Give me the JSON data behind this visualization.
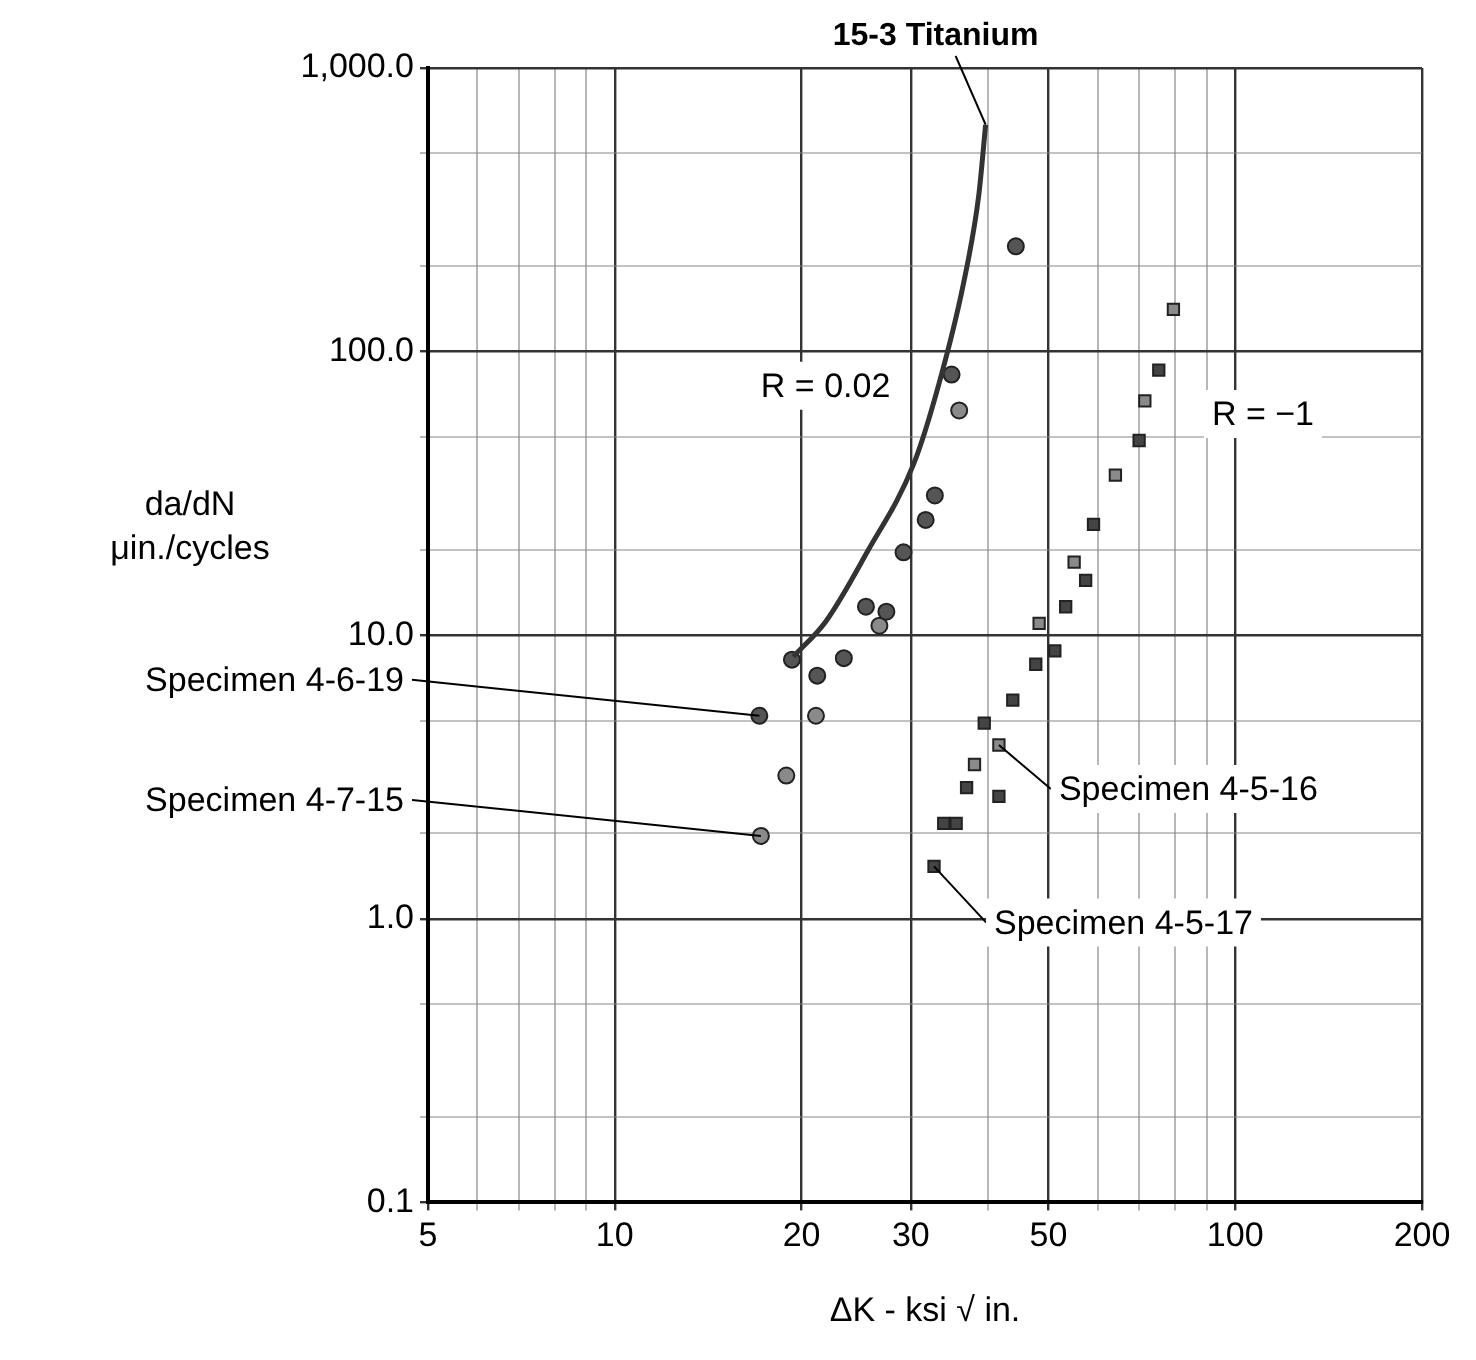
{
  "chart_data": {
    "type": "scatter",
    "xlabel": "ΔK - ksi √ in.",
    "ylabel": "da/dN\nμin./cycles",
    "log": "xy",
    "grid": true,
    "legend": false,
    "xlim": [
      5,
      200
    ],
    "ylim": [
      0.1,
      1000
    ],
    "xticks": [
      5,
      {
        "value": 6,
        "label": null
      },
      {
        "value": 7,
        "label": null
      },
      {
        "value": 8,
        "label": null
      },
      {
        "value": 9,
        "label": null
      },
      10,
      20,
      30,
      {
        "value": 40,
        "label": null
      },
      50,
      {
        "value": 60,
        "label": null
      },
      {
        "value": 70,
        "label": null
      },
      {
        "value": 80,
        "label": null
      },
      {
        "value": 90,
        "label": null
      },
      100,
      200
    ],
    "yticks": [
      {
        "value": 0.1,
        "label": "0.1"
      },
      {
        "value": 0.2,
        "label": null
      },
      {
        "value": 0.5,
        "label": null
      },
      {
        "value": 1,
        "label": "1.0"
      },
      {
        "value": 2,
        "label": null
      },
      {
        "value": 5,
        "label": null
      },
      {
        "value": 10,
        "label": "10.0"
      },
      {
        "value": 20,
        "label": null
      },
      {
        "value": 50,
        "label": null
      },
      {
        "value": 100,
        "label": "100.0"
      },
      {
        "value": 200,
        "label": null
      },
      {
        "value": 500,
        "label": null
      },
      {
        "value": 1000,
        "label": "1,000.0"
      }
    ],
    "annotations": [
      "R = 0.02",
      "R = −1"
    ],
    "series": [
      {
        "name": "15-3 Titanium",
        "type": "line",
        "marker": "none",
        "color": "#333333",
        "x": [
          19.4,
          21.9,
          25.5,
          30.3,
          33.3,
          36.5,
          38.6,
          39.6
        ],
        "values": [
          8.4,
          11.2,
          19.6,
          40,
          77,
          175,
          355,
          631
        ]
      },
      {
        "name": "Specimen 4-6-19",
        "marker": "circle",
        "color": "#555555",
        "x": [
          17.1,
          19.3,
          21.2,
          23.4,
          25.4,
          27.4,
          29.2,
          31.7,
          32.8,
          34.9,
          44.3
        ],
        "values": [
          5.2,
          8.2,
          7.2,
          8.3,
          12.6,
          12.1,
          19.6,
          25.5,
          31.1,
          83,
          235
        ]
      },
      {
        "name": "Specimen 4-7-15",
        "marker": "circle",
        "color": "#8a8a8a",
        "x": [
          17.2,
          18.9,
          21.1,
          26.7,
          35.9
        ],
        "values": [
          1.96,
          3.2,
          5.2,
          10.8,
          62
        ]
      },
      {
        "name": "Specimen 4-5-16",
        "marker": "square",
        "color": "#8a8a8a",
        "x": [
          41.6,
          38.0,
          48.3,
          55.0,
          64.1,
          71.5,
          79.5
        ],
        "values": [
          4.1,
          3.5,
          11.0,
          18.1,
          36.7,
          67,
          141
        ]
      },
      {
        "name": "Specimen 4-5-17",
        "marker": "square",
        "color": "#444444",
        "x": [
          32.7,
          33.9,
          35.5,
          36.9,
          41.6,
          39.4,
          43.8,
          47.7,
          51.2,
          53.3,
          57.4,
          59.1,
          70.0,
          75.3
        ],
        "values": [
          1.53,
          2.17,
          2.17,
          2.9,
          2.7,
          4.9,
          5.9,
          7.9,
          8.8,
          12.6,
          15.6,
          24.6,
          48.6,
          86
        ]
      }
    ]
  }
}
